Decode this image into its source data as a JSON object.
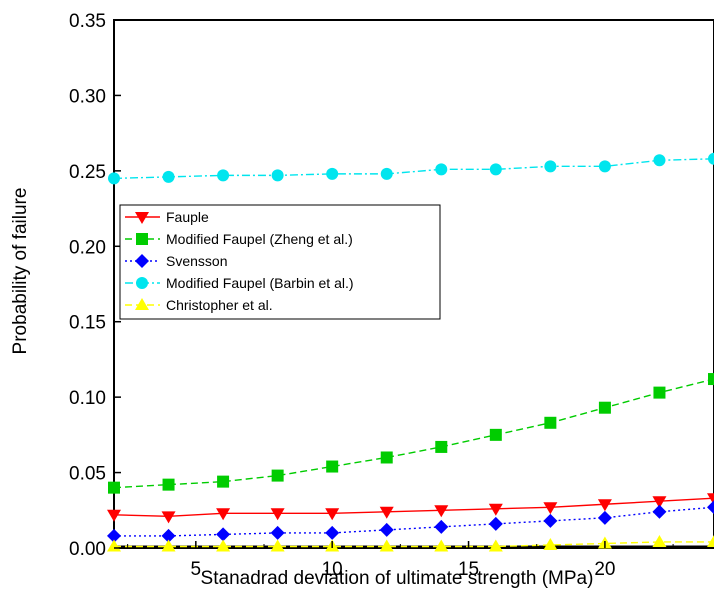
{
  "chart_data": {
    "type": "line",
    "title": "",
    "xlabel": "Stanadrad deviation of ultimate strength (MPa)",
    "ylabel": "Probability of  failure",
    "xlim": [
      2,
      24
    ],
    "ylim": [
      0,
      0.35
    ],
    "xticks": [
      5,
      10,
      15,
      20
    ],
    "yticks": [
      0.0,
      0.05,
      0.1,
      0.15,
      0.2,
      0.25,
      0.3,
      0.35
    ],
    "ytick_labels": [
      "0.00",
      "0.05",
      "0.10",
      "0.15",
      "0.20",
      "0.25",
      "0.30",
      "0.35"
    ],
    "xtick_labels": [
      "5",
      "10",
      "15",
      "20"
    ],
    "grid": false,
    "legend_placement": "center-left",
    "x": [
      2,
      4,
      6,
      8,
      10,
      12,
      14,
      16,
      18,
      20,
      22,
      24
    ],
    "series": [
      {
        "name": "Fauple",
        "color": "#ff0000",
        "marker": "triangle-down",
        "dash": "solid",
        "values": [
          0.022,
          0.021,
          0.023,
          0.023,
          0.023,
          0.024,
          0.025,
          0.026,
          0.027,
          0.029,
          0.031,
          0.033
        ]
      },
      {
        "name": "Modified Faupel (Zheng et al.)",
        "color": "#00cc00",
        "marker": "square",
        "dash": "dashed",
        "values": [
          0.04,
          0.042,
          0.044,
          0.048,
          0.054,
          0.06,
          0.067,
          0.075,
          0.083,
          0.093,
          0.103,
          0.112
        ]
      },
      {
        "name": "Svensson",
        "color": "#0000ff",
        "marker": "diamond",
        "dash": "dotted",
        "values": [
          0.008,
          0.008,
          0.009,
          0.01,
          0.01,
          0.012,
          0.014,
          0.016,
          0.018,
          0.02,
          0.024,
          0.027
        ]
      },
      {
        "name": "Modified Faupel (Barbin et al.)",
        "color": "#00e5ee",
        "marker": "circle",
        "dash": "dashdot",
        "values": [
          0.245,
          0.246,
          0.247,
          0.247,
          0.248,
          0.248,
          0.251,
          0.251,
          0.253,
          0.253,
          0.257,
          0.258
        ]
      },
      {
        "name": "Christopher et al.",
        "color": "#ffff00",
        "marker": "triangle-up",
        "dash": "dashed",
        "values": [
          0.001,
          0.001,
          0.001,
          0.001,
          0.001,
          0.001,
          0.001,
          0.001,
          0.002,
          0.003,
          0.004,
          0.004
        ]
      }
    ],
    "baseline": {
      "color": "#000000",
      "values": [
        0.001,
        0.001,
        0.001,
        0.001,
        0.001,
        0.001,
        0.001,
        0.001,
        0.001,
        0.001,
        0.001,
        0.001
      ]
    }
  }
}
